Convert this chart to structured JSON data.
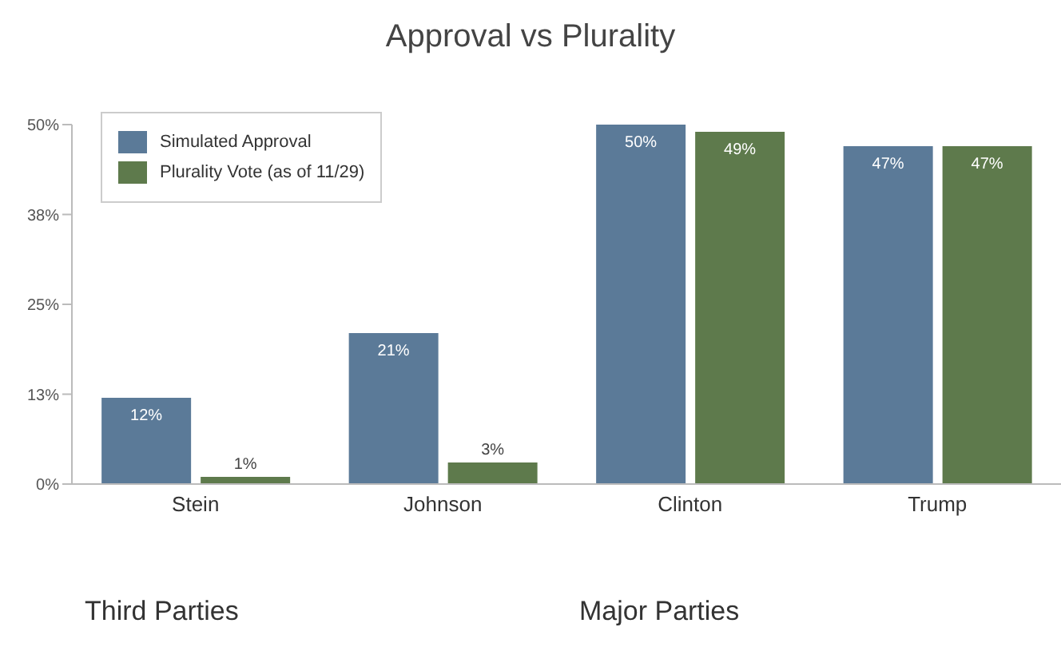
{
  "chart_data": {
    "type": "bar",
    "title": "Approval vs Plurality",
    "categories": [
      "Stein",
      "Johnson",
      "Clinton",
      "Trump"
    ],
    "series": [
      {
        "name": "Simulated Approval",
        "color": "#5b7a98",
        "values": [
          12,
          21,
          50,
          47
        ]
      },
      {
        "name": "Plurality Vote (as of 11/29)",
        "color": "#5e7a4c",
        "values": [
          1,
          3,
          49,
          47
        ]
      }
    ],
    "ylim": [
      0,
      50
    ],
    "yticks": [
      {
        "value": 0,
        "label": "0%"
      },
      {
        "value": 12.5,
        "label": "13%"
      },
      {
        "value": 25,
        "label": "25%"
      },
      {
        "value": 37.5,
        "label": "38%"
      },
      {
        "value": 50,
        "label": "50%"
      }
    ],
    "value_labels": [
      [
        "12%",
        "21%",
        "50%",
        "47%"
      ],
      [
        "1%",
        "3%",
        "49%",
        "47%"
      ]
    ],
    "annotations": [
      "Third Parties",
      "Major Parties"
    ],
    "legend": "top left",
    "grid": false
  }
}
